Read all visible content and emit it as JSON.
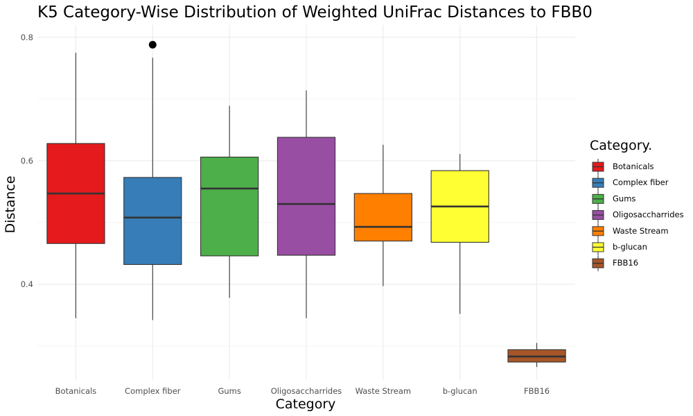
{
  "chart_data": {
    "type": "boxplot",
    "title": "K5 Category-Wise Distribution of Weighted UniFrac Distances to FBB0",
    "xlabel": "Category",
    "ylabel": "Distance",
    "ylim": [
      0.245,
      0.82
    ],
    "yticks": [
      0.4,
      0.6,
      0.8
    ],
    "grid": true,
    "legend": {
      "title": "Category.",
      "position": "right"
    },
    "categories": [
      "Botanicals",
      "Complex fiber",
      "Gums",
      "Oligosaccharrides",
      "Waste Stream",
      "b-glucan",
      "FBB16"
    ],
    "series": [
      {
        "category": "Botanicals",
        "min": 0.345,
        "q1": 0.466,
        "median": 0.547,
        "q3": 0.628,
        "max": 0.775,
        "outliers": [],
        "color": "#E41A1C"
      },
      {
        "category": "Complex fiber",
        "min": 0.342,
        "q1": 0.432,
        "median": 0.508,
        "q3": 0.573,
        "max": 0.767,
        "outliers": [
          0.788
        ],
        "color": "#377EB8"
      },
      {
        "category": "Gums",
        "min": 0.378,
        "q1": 0.446,
        "median": 0.555,
        "q3": 0.606,
        "max": 0.689,
        "outliers": [],
        "color": "#4DAF4A"
      },
      {
        "category": "Oligosaccharrides",
        "min": 0.345,
        "q1": 0.447,
        "median": 0.53,
        "q3": 0.638,
        "max": 0.714,
        "outliers": [],
        "color": "#984EA3"
      },
      {
        "category": "Waste Stream",
        "min": 0.397,
        "q1": 0.47,
        "median": 0.493,
        "q3": 0.547,
        "max": 0.626,
        "outliers": [],
        "color": "#FF7F00"
      },
      {
        "category": "b-glucan",
        "min": 0.352,
        "q1": 0.468,
        "median": 0.526,
        "q3": 0.584,
        "max": 0.611,
        "outliers": [],
        "color": "#FFFF33"
      },
      {
        "category": "FBB16",
        "min": 0.266,
        "q1": 0.274,
        "median": 0.283,
        "q3": 0.294,
        "max": 0.305,
        "outliers": [],
        "color": "#A65628"
      }
    ]
  }
}
